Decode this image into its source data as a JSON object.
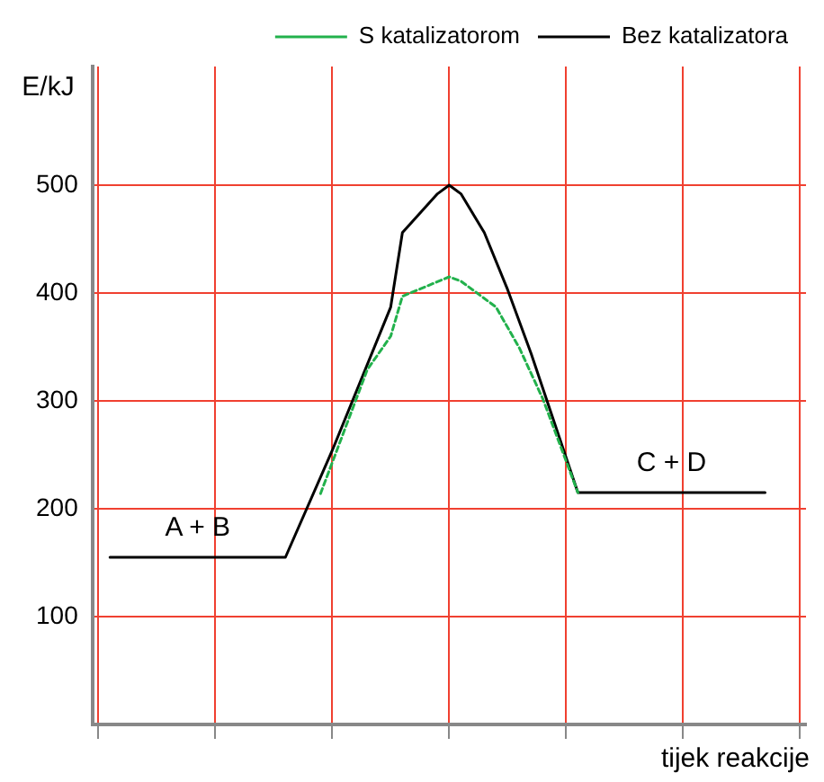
{
  "chart_data": {
    "type": "line",
    "xlabel": "tijek reakcije",
    "ylabel": "E/kJ",
    "categories": [
      null,
      null,
      null,
      null,
      null,
      null,
      null,
      null,
      null,
      null,
      null,
      null,
      null,
      null,
      null,
      null,
      null,
      null,
      null,
      null,
      null,
      null,
      null,
      null,
      null,
      null,
      null,
      null,
      null,
      null,
      null,
      null,
      null,
      null,
      null,
      null,
      null,
      null,
      null,
      null,
      null,
      null,
      null,
      null,
      null,
      null,
      null,
      null,
      null,
      null,
      null,
      null,
      null,
      null,
      null,
      null,
      null,
      null,
      null,
      null,
      null
    ],
    "ylim": [
      0,
      610
    ],
    "yticks": [
      100,
      200,
      300,
      400,
      500
    ],
    "tick_labels": "y",
    "grid": true,
    "legend": "top right",
    "marker": "none",
    "series": [
      {
        "name": "Bez katalizatora",
        "color": "#000000",
        "line_style": "solid",
        "values": [
          null,
          155,
          null,
          null,
          null,
          null,
          null,
          null,
          null,
          null,
          null,
          null,
          null,
          null,
          null,
          null,
          155,
          null,
          null,
          null,
          254,
          null,
          null,
          null,
          null,
          387,
          456,
          null,
          null,
          492,
          500,
          492,
          null,
          456,
          null,
          403,
          null,
          344,
          null,
          null,
          null,
          215,
          null,
          null,
          null,
          null,
          null,
          null,
          null,
          null,
          null,
          null,
          null,
          null,
          null,
          null,
          null,
          215,
          null,
          null,
          null
        ]
      },
      {
        "name": "S katalizatorom",
        "color": "#22b14c",
        "line_style": "dashed",
        "values": [
          null,
          null,
          null,
          null,
          null,
          null,
          null,
          null,
          null,
          null,
          null,
          null,
          null,
          null,
          null,
          null,
          null,
          null,
          null,
          214,
          null,
          null,
          null,
          329,
          null,
          360,
          397,
          null,
          null,
          null,
          415,
          411,
          null,
          null,
          387,
          null,
          349,
          null,
          302,
          null,
          null,
          215,
          null,
          null,
          null,
          null,
          null,
          null,
          null,
          null,
          null,
          null,
          null,
          null,
          null,
          null,
          null,
          null,
          null,
          null,
          null
        ]
      }
    ],
    "annotations": [
      "A + B",
      "C + D"
    ]
  }
}
